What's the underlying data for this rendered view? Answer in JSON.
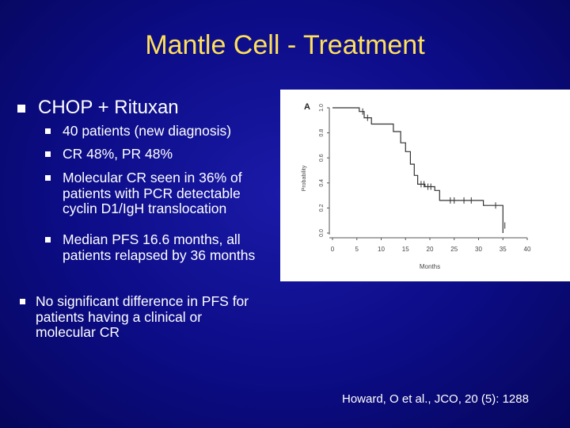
{
  "slide": {
    "title": "Mantle Cell - Treatment",
    "main_bullet": "CHOP + Rituxan",
    "sub_bullets": [
      "40 patients (new diagnosis)",
      "CR 48%,  PR 48%",
      "Molecular CR seen in 36% of patients with PCR detectable cyclin D1/IgH translocation",
      "Median PFS 16.6 months, all patients relapsed by 36 months"
    ],
    "second_bullet": "No significant difference in PFS for patients having a clinical or molecular CR",
    "citation": "Howard, O  et al., JCO, 20 (5): 1288"
  },
  "colors": {
    "title": "#ffe05a",
    "text": "#ffffff",
    "background": "#0c0c86"
  },
  "chart_data": {
    "type": "line",
    "panel_label": "A",
    "xlabel": "Months",
    "ylabel": "Probability",
    "xlim": [
      0,
      40
    ],
    "ylim": [
      0,
      1.0
    ],
    "x_ticks": [
      0,
      5,
      10,
      15,
      20,
      25,
      30,
      35,
      40
    ],
    "y_ticks": [
      "0.0",
      "0.2",
      "0.4",
      "0.6",
      "0.8",
      "1.0"
    ],
    "series": [
      {
        "steps": [
          [
            0,
            1.0
          ],
          [
            5.5,
            1.0
          ],
          [
            5.5,
            0.97
          ],
          [
            6.5,
            0.97
          ],
          [
            6.5,
            0.92
          ],
          [
            8,
            0.92
          ],
          [
            8,
            0.87
          ],
          [
            12.5,
            0.87
          ],
          [
            12.5,
            0.81
          ],
          [
            14,
            0.81
          ],
          [
            14,
            0.72
          ],
          [
            15,
            0.72
          ],
          [
            15,
            0.65
          ],
          [
            16,
            0.65
          ],
          [
            16,
            0.55
          ],
          [
            16.8,
            0.55
          ],
          [
            16.8,
            0.46
          ],
          [
            17.5,
            0.46
          ],
          [
            17.5,
            0.39
          ],
          [
            19,
            0.39
          ],
          [
            19,
            0.37
          ],
          [
            21,
            0.37
          ],
          [
            21,
            0.34
          ],
          [
            22,
            0.34
          ],
          [
            22,
            0.26
          ],
          [
            31,
            0.26
          ],
          [
            31,
            0.22
          ],
          [
            35,
            0.22
          ],
          [
            35,
            0.0
          ]
        ],
        "censors": [
          [
            6.2,
            0.97
          ],
          [
            7.2,
            0.92
          ],
          [
            18.2,
            0.39
          ],
          [
            18.8,
            0.39
          ],
          [
            19.6,
            0.37
          ],
          [
            20.2,
            0.37
          ],
          [
            24.2,
            0.26
          ],
          [
            25,
            0.26
          ],
          [
            27,
            0.26
          ],
          [
            28.5,
            0.26
          ],
          [
            33.5,
            0.22
          ],
          [
            35.4,
            0.06
          ]
        ]
      }
    ]
  }
}
